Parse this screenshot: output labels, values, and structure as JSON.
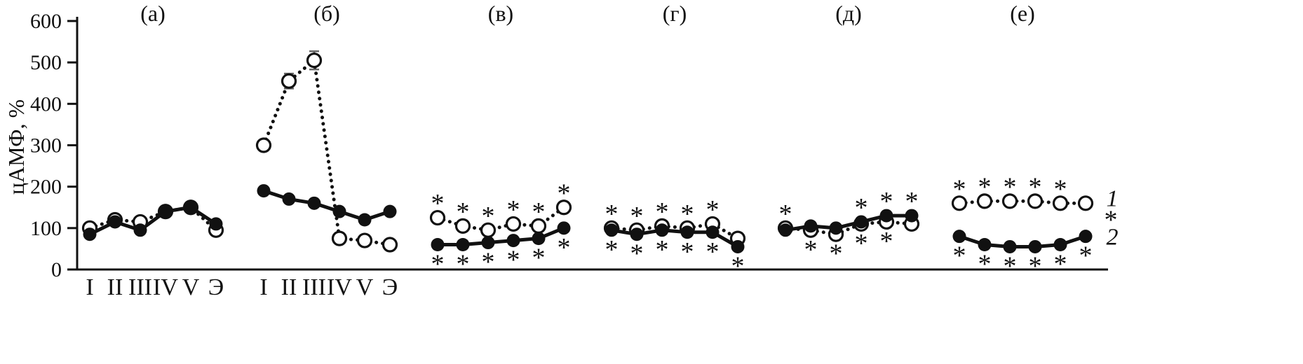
{
  "chart_data": {
    "type": "line",
    "title": "",
    "xlabel": "",
    "ylabel": "цАМФ, %",
    "ylim": [
      0,
      600
    ],
    "y_ticks": [
      0,
      100,
      200,
      300,
      400,
      500,
      600
    ],
    "categories": [
      "I",
      "II",
      "III",
      "IV",
      "V",
      "Э"
    ],
    "x_axis_labeled_panels": [
      0,
      1
    ],
    "grid": "off",
    "significance_marker": "*",
    "legend": {
      "series1_label": "1",
      "series2_label": "2",
      "position": "right-of-last-panel"
    },
    "series_styles": {
      "series1": {
        "marker": "open-circle",
        "line": "dotted"
      },
      "series2": {
        "marker": "filled-circle",
        "line": "solid"
      }
    },
    "colors": {
      "ink": "#111111",
      "error_bar": "#666666",
      "background": "#ffffff"
    },
    "panels": [
      {
        "label": "(а)",
        "series1": {
          "values": [
            100,
            120,
            115,
            140,
            150,
            95
          ],
          "errors": [
            0,
            0,
            0,
            0,
            0,
            0
          ]
        },
        "series2": {
          "values": [
            85,
            115,
            95,
            140,
            150,
            110
          ]
        },
        "asterisks_above": [],
        "asterisks_below": []
      },
      {
        "label": "(б)",
        "series1": {
          "values": [
            300,
            455,
            505,
            75,
            70,
            60
          ],
          "errors": [
            0,
            18,
            22,
            0,
            0,
            0
          ]
        },
        "series2": {
          "values": [
            190,
            170,
            160,
            140,
            120,
            140
          ]
        },
        "asterisks_above": [],
        "asterisks_below": []
      },
      {
        "label": "(в)",
        "series1": {
          "values": [
            125,
            105,
            95,
            110,
            105,
            150
          ],
          "errors": [
            0,
            0,
            0,
            0,
            0,
            0
          ]
        },
        "series2": {
          "values": [
            60,
            60,
            65,
            70,
            75,
            100
          ]
        },
        "asterisks_above": [
          0,
          1,
          2,
          3,
          4,
          5
        ],
        "asterisks_below": [
          0,
          1,
          2,
          3,
          4,
          5
        ]
      },
      {
        "label": "(г)",
        "series1": {
          "values": [
            100,
            95,
            105,
            100,
            110,
            75
          ],
          "errors": [
            0,
            0,
            0,
            0,
            0,
            0
          ]
        },
        "series2": {
          "values": [
            95,
            85,
            95,
            90,
            90,
            55
          ]
        },
        "asterisks_above": [
          0,
          1,
          2,
          3,
          4
        ],
        "asterisks_below": [
          0,
          1,
          2,
          3,
          4,
          5
        ]
      },
      {
        "label": "(д)",
        "series1": {
          "values": [
            100,
            95,
            85,
            110,
            115,
            110
          ],
          "errors": [
            0,
            0,
            0,
            0,
            0,
            0
          ]
        },
        "series2": {
          "values": [
            95,
            105,
            100,
            115,
            130,
            130
          ]
        },
        "asterisks_above": [
          0,
          3,
          4,
          5
        ],
        "asterisks_below": [
          1,
          2,
          3,
          4
        ]
      },
      {
        "label": "(е)",
        "series1": {
          "values": [
            160,
            165,
            165,
            165,
            160,
            160
          ],
          "errors": [
            0,
            0,
            0,
            0,
            0,
            0
          ]
        },
        "series2": {
          "values": [
            80,
            60,
            55,
            55,
            60,
            80
          ]
        },
        "asterisks_above": [
          0,
          1,
          2,
          3,
          4
        ],
        "asterisks_below": [
          0,
          1,
          2,
          3,
          4,
          5
        ],
        "asterisk_right": true
      }
    ]
  }
}
